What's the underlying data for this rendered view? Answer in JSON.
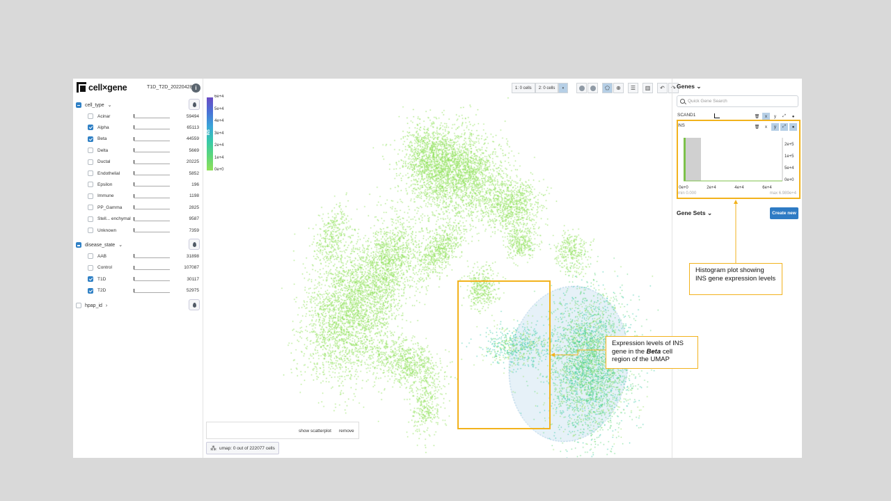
{
  "app": {
    "logo_text": "cell×gene",
    "dataset": "T1D_T2D_20220428",
    "info_icon": "info-icon"
  },
  "categories": [
    {
      "name": "cell_type",
      "items": [
        {
          "label": "Acinar",
          "count": "59494",
          "checked": false
        },
        {
          "label": "Alpha",
          "count": "65113",
          "checked": true
        },
        {
          "label": "Beta",
          "count": "44559",
          "checked": true
        },
        {
          "label": "Delta",
          "count": "5669",
          "checked": false
        },
        {
          "label": "Ductal",
          "count": "20225",
          "checked": false
        },
        {
          "label": "Endothelial",
          "count": "5852",
          "checked": false
        },
        {
          "label": "Epsilon",
          "count": "196",
          "checked": false
        },
        {
          "label": "Immune",
          "count": "1198",
          "checked": false
        },
        {
          "label": "PP_Gamma",
          "count": "2825",
          "checked": false
        },
        {
          "label": "Stell... enchymal",
          "count": "9587",
          "checked": false
        },
        {
          "label": "Unknown",
          "count": "7359",
          "checked": false
        }
      ]
    },
    {
      "name": "disease_state",
      "items": [
        {
          "label": "AAB",
          "count": "31898",
          "checked": false
        },
        {
          "label": "Control",
          "count": "107087",
          "checked": false
        },
        {
          "label": "T1D",
          "count": "30117",
          "checked": true
        },
        {
          "label": "T2D",
          "count": "52975",
          "checked": true
        }
      ]
    },
    {
      "name": "hpap_id",
      "items": []
    }
  ],
  "legend": {
    "gene": "INS",
    "ticks": [
      "6e+4",
      "5e+4",
      "4e+4",
      "3e+4",
      "2e+4",
      "1e+4",
      "0e+0"
    ],
    "colors": [
      "#6a4cc4",
      "#3aa6d8",
      "#5dd67a",
      "#8fe05a"
    ]
  },
  "toolbar": {
    "selection1": "1: 0 cells",
    "selection2": "2: 0 cells"
  },
  "embedding": {
    "show_scatterplot": "show scatterplot",
    "remove": "remove",
    "umap_label": "umap: 0 out of 222077 cells"
  },
  "genes": {
    "title": "Genes",
    "search_placeholder": "Quick Gene Search",
    "items": [
      "SCAND1",
      "INS"
    ],
    "tool_labels": [
      "x",
      "y"
    ]
  },
  "histogram": {
    "x_ticks": [
      "0e+0",
      "2e+4",
      "4e+4",
      "6e+4"
    ],
    "y_ticks": [
      "2e+5",
      "1e+5",
      "5e+4",
      "0e+0"
    ],
    "min_label": "min 0.000",
    "max_label": "max 6.989e+4"
  },
  "gene_sets": {
    "title": "Gene Sets",
    "create_label": "Create new"
  },
  "annotations": {
    "histogram_note": "Histogram plot showing INS gene expression levels",
    "umap_note_part1": "Expression levels of INS gene in the ",
    "umap_note_bold": "Beta",
    "umap_note_part2": " cell region of the UMAP"
  },
  "colors": {
    "accent": "#2e7bc4",
    "highlight": "#f2b21c",
    "low_expression": "#8fe05a",
    "high_expression": "#37c9a9"
  }
}
